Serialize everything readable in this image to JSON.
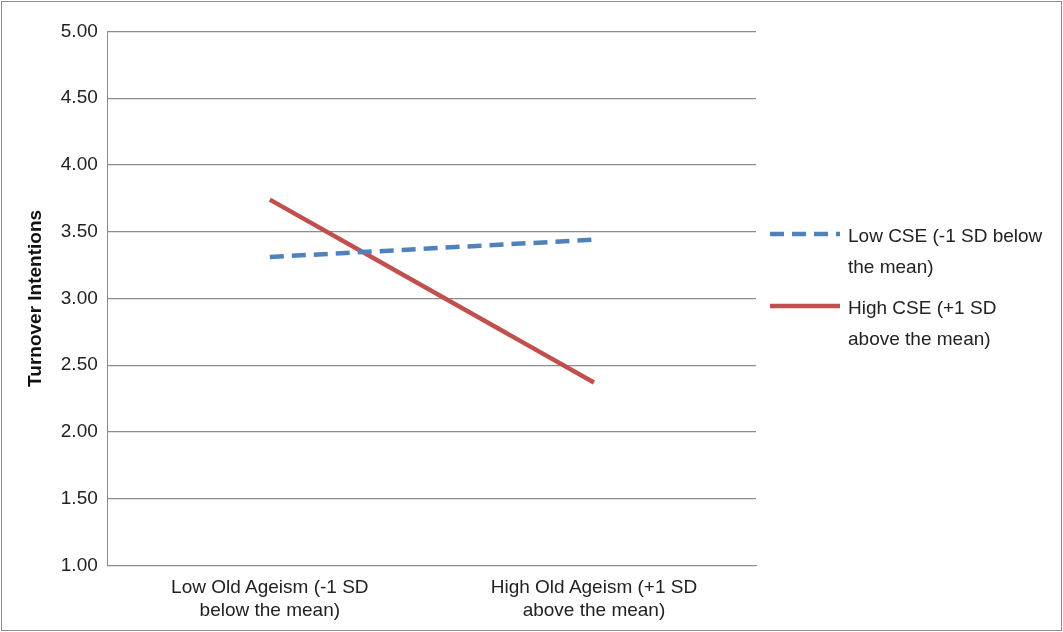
{
  "chart_data": {
    "type": "line",
    "ylabel": "Turnover Intentions",
    "categories": [
      "Low Old Ageism (-1 SD below the mean)",
      "High Old Ageism (+1 SD above the mean)"
    ],
    "series": [
      {
        "name": "Low CSE (-1 SD below the mean)",
        "color": "#4f81bd",
        "values": [
          3.31,
          3.44
        ],
        "line_style": "dashed"
      },
      {
        "name": "High CSE (+1 SD above the mean)",
        "color": "#c0504d",
        "values": [
          3.74,
          2.37
        ],
        "line_style": "solid"
      }
    ],
    "ylim": [
      1,
      5
    ],
    "yticks": [
      {
        "value": 1,
        "label": "1.00"
      },
      {
        "value": 1.5,
        "label": "1.50"
      },
      {
        "value": 2,
        "label": "2.00"
      },
      {
        "value": 2.5,
        "label": "2.50"
      },
      {
        "value": 3,
        "label": "3.00"
      },
      {
        "value": 3.5,
        "label": "3.50"
      },
      {
        "value": 4,
        "label": "4.00"
      },
      {
        "value": 4.5,
        "label": "4.50"
      },
      {
        "value": 5,
        "label": "5.00"
      }
    ],
    "grid": "y",
    "legend": "right",
    "marker": "none"
  }
}
